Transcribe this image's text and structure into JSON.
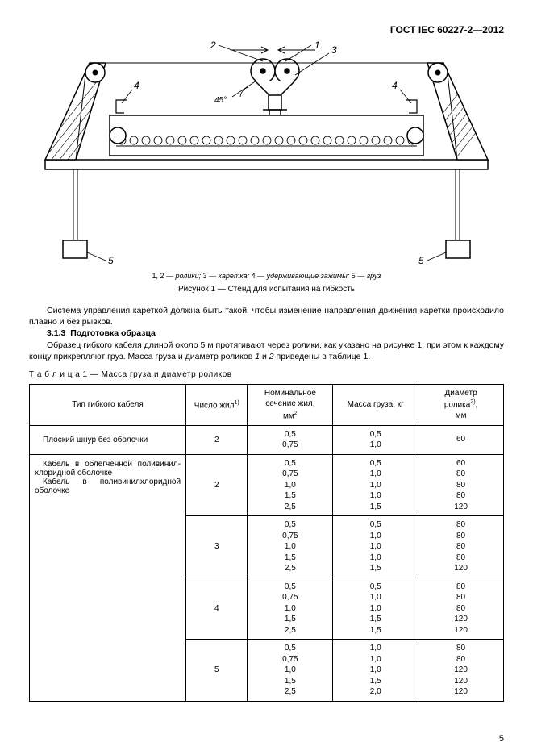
{
  "header": "ГОСТ IEC 60227-2—2012",
  "figure": {
    "legend_parts": [
      "1",
      ", ",
      "2",
      " — ролики; ",
      "3",
      " — каретка; ",
      "4",
      " — удерживающие зажимы; ",
      "5",
      " — груз"
    ],
    "caption": "Рисунок 1 — Стенд для испытания на гибкость",
    "labels": {
      "l1": "1",
      "l2": "2",
      "l3": "3",
      "l4": "4",
      "l5": "5",
      "angle": "45°"
    },
    "style": {
      "stroke": "#000000",
      "stroke_thin": 1,
      "stroke_med": 1.5,
      "hatch": "#000000",
      "bg": "#ffffff",
      "font_size": 11,
      "font_family": "Arial, sans-serif"
    }
  },
  "paragraphs": {
    "p1": "Система управления кареткой должна быть такой, чтобы изменение направления движения каретки происходило плавно и без рывков.",
    "s313_num": "3.1.3",
    "s313_title": "Подготовка образца",
    "p2_a": "Образец гибкого кабеля длиной около 5 м протягивают через ролики, как указано на рисунке 1, при этом к каждому концу прикрепляют груз. Масса груза и диаметр роликов ",
    "p2_i1": "1",
    "p2_mid": " и ",
    "p2_i2": "2",
    "p2_b": " приведены в таблице 1."
  },
  "table": {
    "caption_word": "Т а б л и ц а",
    "caption_rest": "  1 — Масса груза и диаметр роликов",
    "headers": {
      "h1": "Тип гибкого кабеля",
      "h2": "Число жил",
      "h2_sup": "1)",
      "h3a": "Номинальное",
      "h3b": "сечение жил,",
      "h3c": "мм",
      "h3c_sup": "2",
      "h4": "Масса груза, кг",
      "h5a": "Диаметр",
      "h5b": "ролика",
      "h5b_sup": "2)",
      "h5c": ",",
      "h5d": "мм"
    },
    "rows": [
      {
        "type": "Плоский шнур без оболочки",
        "cores": "2",
        "section": [
          "0,5",
          "0,75"
        ],
        "mass": [
          "0,5",
          "1,0"
        ],
        "diam": [
          "60"
        ]
      },
      {
        "type_lines": [
          "Кабель в облегченной поливинил-хлоридной оболочке",
          "Кабель в поливинилхлоридной оболочке"
        ],
        "cores": "2",
        "section": [
          "0,5",
          "0,75",
          "1,0",
          "1,5",
          "2,5"
        ],
        "mass": [
          "0,5",
          "1,0",
          "1,0",
          "1,0",
          "1,5"
        ],
        "diam": [
          "60",
          "80",
          "80",
          "80",
          "120"
        ]
      },
      {
        "type": "",
        "cores": "3",
        "section": [
          "0,5",
          "0,75",
          "1,0",
          "1,5",
          "2,5"
        ],
        "mass": [
          "0,5",
          "1,0",
          "1,0",
          "1,0",
          "1,5"
        ],
        "diam": [
          "80",
          "80",
          "80",
          "80",
          "120"
        ]
      },
      {
        "type": "",
        "cores": "4",
        "section": [
          "0,5",
          "0,75",
          "1,0",
          "1,5",
          "2,5"
        ],
        "mass": [
          "0,5",
          "1,0",
          "1,0",
          "1,5",
          "1,5"
        ],
        "diam": [
          "80",
          "80",
          "80",
          "120",
          "120"
        ]
      },
      {
        "type": "",
        "cores": "5",
        "section": [
          "0,5",
          "0,75",
          "1,0",
          "1,5",
          "2,5"
        ],
        "mass": [
          "1,0",
          "1,0",
          "1,0",
          "1,5",
          "2,0"
        ],
        "diam": [
          "80",
          "80",
          "120",
          "120",
          "120"
        ]
      }
    ]
  },
  "page_number": "5"
}
